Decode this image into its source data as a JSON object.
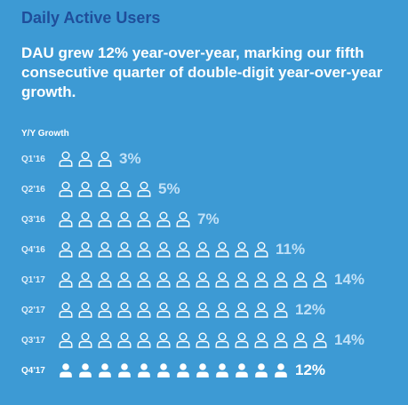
{
  "title": "Daily Active Users",
  "headline": "DAU grew 12% year-over-year, marking our fifth consecutive quarter of double-digit year-over-year growth.",
  "colors": {
    "background": "#3d9ad4",
    "title": "#1f4e9a",
    "icon_outline": "#ffffff",
    "icon_filled": "#ffffff"
  },
  "chart_data": {
    "type": "pictograph",
    "ylabel": "Y/Y Growth",
    "categories": [
      "Q1'16",
      "Q2'16",
      "Q3'16",
      "Q4'16",
      "Q1'17",
      "Q2'17",
      "Q3'17",
      "Q4'17"
    ],
    "values": [
      3,
      5,
      7,
      11,
      14,
      12,
      14,
      12
    ],
    "value_labels": [
      "3%",
      "5%",
      "7%",
      "11%",
      "14%",
      "12%",
      "14%",
      "12%"
    ],
    "highlight": "Q4'17",
    "icon": "person-icon"
  }
}
